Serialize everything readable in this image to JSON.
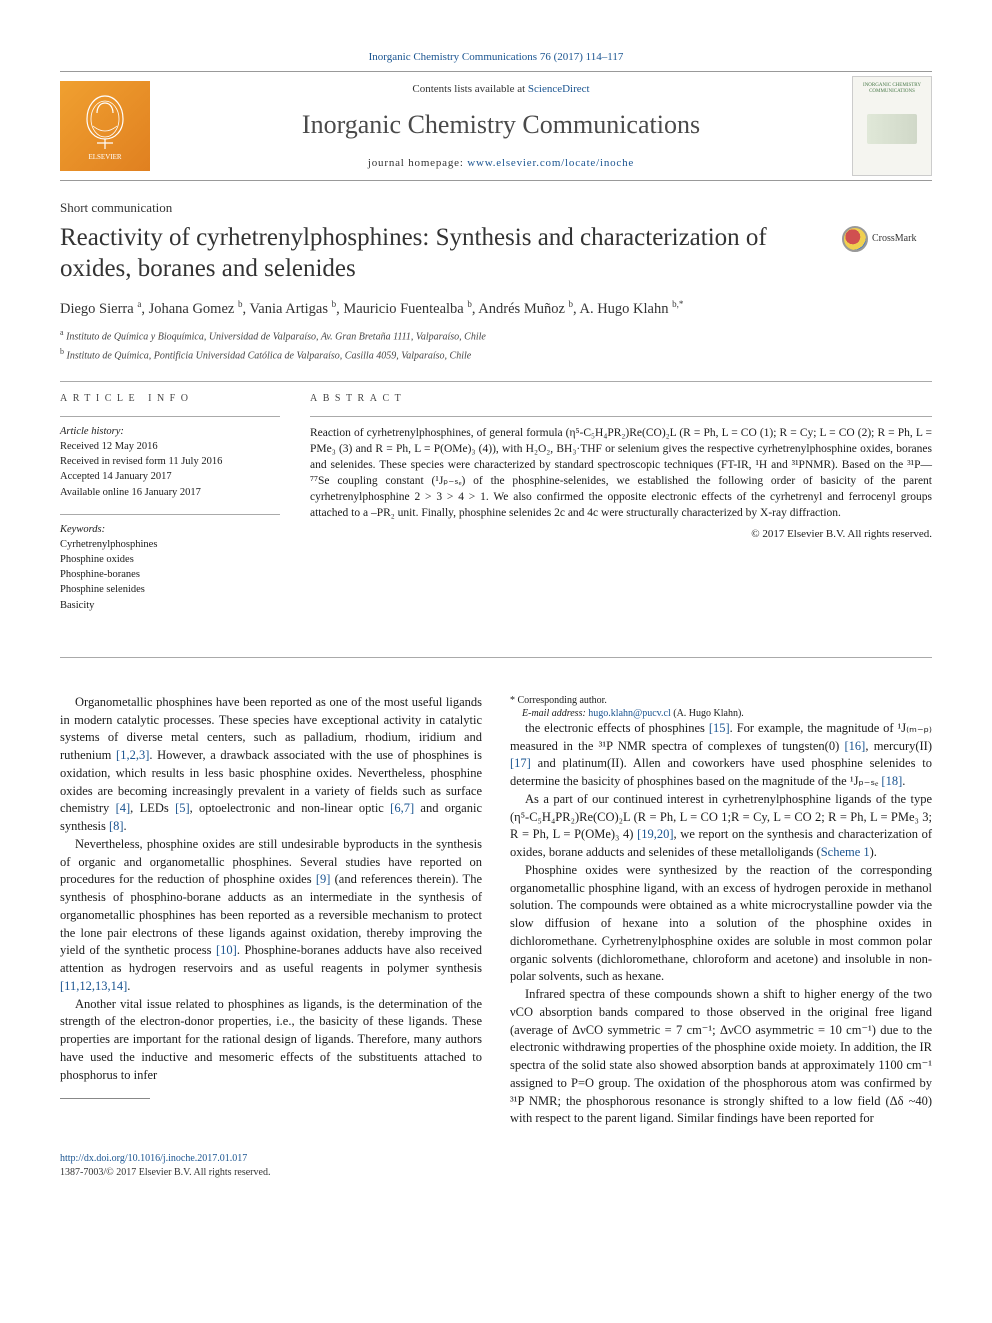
{
  "top_citation": "Inorganic Chemistry Communications 76 (2017) 114–117",
  "banner": {
    "contents_pre": "Contents lists available at ",
    "contents_link": "ScienceDirect",
    "journal": "Inorganic Chemistry Communications",
    "homepage_pre": "journal homepage: ",
    "homepage_url": "www.elsevier.com/locate/inoche",
    "cover_title": "INORGANIC CHEMISTRY COMMUNICATIONS"
  },
  "article_type": "Short communication",
  "title": "Reactivity of cyrhetrenylphosphines: Synthesis and characterization of oxides, boranes and selenides",
  "crossmark_label": "CrossMark",
  "authors_html": "Diego Sierra <sup>a</sup>, Johana Gomez <sup>b</sup>, Vania Artigas <sup>b</sup>, Mauricio Fuentealba <sup>b</sup>, Andrés Muñoz <sup>b</sup>, A. Hugo Klahn <sup>b,*</sup>",
  "affiliations": {
    "a": "Instituto de Química y Bioquímica, Universidad de Valparaíso, Av. Gran Bretaña 1111, Valparaíso, Chile",
    "b": "Instituto de Química, Pontificia Universidad Católica de Valparaíso, Casilla 4059, Valparaíso, Chile"
  },
  "info": {
    "label": "ARTICLE INFO",
    "history_label": "Article history:",
    "history": [
      "Received 12 May 2016",
      "Received in revised form 11 July 2016",
      "Accepted 14 January 2017",
      "Available online 16 January 2017"
    ],
    "keywords_label": "Keywords:",
    "keywords": [
      "Cyrhetrenylphosphines",
      "Phosphine oxides",
      "Phosphine-boranes",
      "Phosphine selenides",
      "Basicity"
    ]
  },
  "abstract": {
    "label": "ABSTRACT",
    "text": "Reaction of cyrhetrenylphosphines, of general formula (η⁵-C₅H₄PR₂)Re(CO)₂L (R = Ph, L = CO (1); R = Cy; L = CO (2); R = Ph, L = PMe₃ (3) and R = Ph, L = P(OMe)₃ (4)), with H₂O₂, BH₃·THF or selenium gives the respective cyrhetrenylphosphine oxides, boranes and selenides. These species were characterized by standard spectroscopic techniques (FT-IR, ¹H and ³¹PNMR). Based on the ³¹P—⁷⁷Se coupling constant (¹Jₚ₋ₛₑ) of the phosphine-selenides, we established the following order of basicity of the parent cyrhetrenylphosphine 2 > 3 > 4 > 1. We also confirmed the opposite electronic effects of the cyrhetrenyl and ferrocenyl groups attached to a –PR₂ unit. Finally, phosphine selenides 2c and 4c were structurally characterized by X-ray diffraction.",
    "copyright": "© 2017 Elsevier B.V. All rights reserved."
  },
  "body": {
    "p1_pre": "Organometallic phosphines have been reported as one of the most useful ligands in modern catalytic processes. These species have exceptional activity in catalytic systems of diverse metal centers, such as palladium, rhodium, iridium and ruthenium ",
    "p1_ref1": "[1,2,3]",
    "p1_mid1": ". However, a drawback associated with the use of phosphines is oxidation, which results in less basic phosphine oxides. Nevertheless, phosphine oxides are becoming increasingly prevalent in a variety of fields such as surface chemistry ",
    "p1_ref2": "[4]",
    "p1_mid2": ", LEDs ",
    "p1_ref3": "[5]",
    "p1_mid3": ", optoelectronic and non-linear optic ",
    "p1_ref4": "[6,7]",
    "p1_mid4": " and organic synthesis ",
    "p1_ref5": "[8]",
    "p1_end": ".",
    "p2_pre": "Nevertheless, phosphine oxides are still undesirable byproducts in the synthesis of organic and organometallic phosphines. Several studies have reported on procedures for the reduction of phosphine oxides ",
    "p2_ref1": "[9]",
    "p2_mid1": " (and references therein). The synthesis of phosphino-borane adducts as an intermediate in the synthesis of organometallic phosphines has been reported as a reversible mechanism to protect the lone pair electrons of these ligands against oxidation, thereby improving the yield of the synthetic process ",
    "p2_ref2": "[10]",
    "p2_mid2": ". Phosphine-boranes adducts have also received attention as hydrogen reservoirs and as useful reagents in polymer synthesis ",
    "p2_ref3": "[11,12,13,14]",
    "p2_end": ".",
    "p3": "Another vital issue related to phosphines as ligands, is the determination of the strength of the electron-donor properties, i.e., the basicity of these ligands. These properties are important for the rational design of ligands. Therefore, many authors have used the inductive and mesomeric effects of the substituents attached to phosphorus to infer",
    "p4_pre": "the electronic effects of phosphines ",
    "p4_ref1": "[15]",
    "p4_mid1": ". For example, the magnitude of ¹J₍ₘ₋ₚ₎measured in the ³¹P NMR spectra of complexes of tungsten(0) ",
    "p4_ref2": "[16]",
    "p4_mid2": ", mercury(II) ",
    "p4_ref3": "[17]",
    "p4_mid3": " and platinum(II). Allen and coworkers have used phosphine selenides to determine the basicity of phosphines based on the magnitude of the ¹Jₚ₋ₛₑ ",
    "p4_ref4": "[18]",
    "p4_end": ".",
    "p5_pre": "As a part of our continued interest in cyrhetrenylphosphine ligands of the type (η⁵-C₅H₄PR₂)Re(CO)₂L (R = Ph, L = CO 1;R = Cy, L = CO 2; R = Ph, L = PMe₃ 3; R = Ph, L = P(OMe)₃ 4) ",
    "p5_ref1": "[19,20]",
    "p5_mid1": ", we report on the synthesis and characterization of oxides, borane adducts and selenides of these metalloligands (",
    "p5_ref2": "Scheme 1",
    "p5_end": ").",
    "p6": "Phosphine oxides were synthesized by the reaction of the corresponding organometallic phosphine ligand, with an excess of hydrogen peroxide in methanol solution. The compounds were obtained as a white microcrystalline powder via the slow diffusion of hexane into a solution of the phosphine oxides in dichloromethane. Cyrhetrenylphosphine oxides are soluble in most common polar organic solvents (dichloromethane, chloroform and acetone) and insoluble in non-polar solvents, such as hexane.",
    "p7": "Infrared spectra of these compounds shown a shift to higher energy of the two νCO absorption bands compared to those observed in the original free ligand (average of ΔνCO symmetric = 7 cm⁻¹; ΔνCO asymmetric = 10 cm⁻¹) due to the electronic withdrawing properties of the phosphine oxide moiety. In addition, the IR spectra of the solid state also showed absorption bands at approximately 1100 cm⁻¹ assigned to P=O group. The oxidation of the phosphorous atom was confirmed by ³¹P NMR; the phosphorous resonance is strongly shifted to a low field (Δδ ~40) with respect to the parent ligand. Similar findings have been reported for"
  },
  "footnote": {
    "corr_label": "* Corresponding author.",
    "email_label": "E-mail address: ",
    "email": "hugo.klahn@pucv.cl",
    "email_name": " (A. Hugo Klahn)."
  },
  "footer": {
    "doi": "http://dx.doi.org/10.1016/j.inoche.2017.01.017",
    "issn": "1387-7003/© 2017 Elsevier B.V. All rights reserved."
  },
  "colors": {
    "link": "#1a5490",
    "text": "#1a1a1a",
    "rule": "#aaaaaa",
    "elsevier_bg": "#e88b2e"
  }
}
